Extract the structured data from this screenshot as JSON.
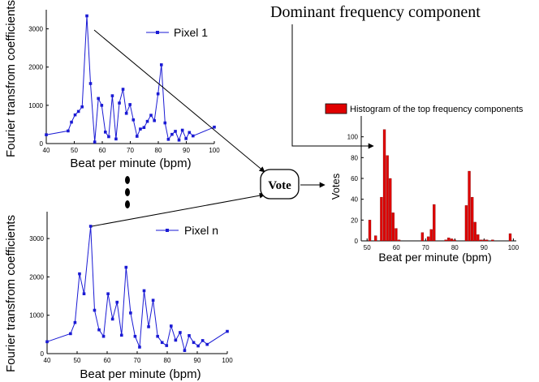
{
  "annotation_title": "Dominant frequency component",
  "vote_label": "Vote",
  "colors": {
    "series": "#1a1ad4",
    "bar": "#e00000",
    "axis": "#000000"
  },
  "chart_data": [
    {
      "id": "pixel1",
      "type": "line",
      "title": "",
      "xlabel": "Beat per minute (bpm)",
      "ylabel": "Fourier transfrom coefficients",
      "legend": "Pixel 1",
      "xlim": [
        40,
        100
      ],
      "ylim": [
        0,
        3500
      ],
      "xticks": [
        40,
        50,
        60,
        70,
        80,
        90,
        100
      ],
      "yticks": [
        0,
        1000,
        2000,
        3000
      ],
      "series": [
        {
          "name": "Pixel 1",
          "x": [
            40,
            47.8,
            49.0,
            50.3,
            51.5,
            52.8,
            54.5,
            55.8,
            57.3,
            58.6,
            59.8,
            61.1,
            62.3,
            63.6,
            64.9,
            66.1,
            67.4,
            68.6,
            69.9,
            71.1,
            72.4,
            73.6,
            74.9,
            76.1,
            77.4,
            78.6,
            79.9,
            81.1,
            82.4,
            83.6,
            84.9,
            86.1,
            87.4,
            88.6,
            89.9,
            91.1,
            92.4,
            100
          ],
          "y": [
            230,
            330,
            560,
            750,
            840,
            960,
            3340,
            1570,
            40,
            1180,
            1000,
            300,
            180,
            1250,
            120,
            1060,
            1420,
            790,
            1020,
            620,
            190,
            380,
            420,
            580,
            740,
            600,
            1300,
            2060,
            540,
            110,
            240,
            320,
            90,
            350,
            130,
            290,
            200,
            430
          ]
        }
      ]
    },
    {
      "id": "pixeln",
      "type": "line",
      "title": "",
      "xlabel": "Beat per minute (bpm)",
      "ylabel": "Fourier transfrom coefficients",
      "legend": "Pixel n",
      "xlim": [
        40,
        100
      ],
      "ylim": [
        0,
        3700
      ],
      "xticks": [
        40,
        50,
        60,
        70,
        80,
        90,
        100
      ],
      "yticks": [
        0,
        1000,
        2000,
        3000
      ],
      "series": [
        {
          "name": "Pixel n",
          "x": [
            40,
            47.8,
            49.3,
            50.8,
            52.3,
            54.5,
            55.8,
            57.3,
            58.8,
            60.3,
            61.8,
            63.3,
            64.8,
            66.3,
            67.8,
            69.3,
            70.8,
            72.3,
            73.8,
            75.3,
            76.8,
            78.3,
            79.8,
            81.3,
            82.8,
            84.3,
            85.8,
            87.3,
            88.8,
            90.3,
            91.8,
            93.3,
            100
          ],
          "y": [
            310,
            520,
            810,
            2080,
            1560,
            3320,
            1130,
            620,
            450,
            1560,
            900,
            1340,
            480,
            2250,
            1060,
            450,
            170,
            1640,
            700,
            1390,
            450,
            290,
            210,
            720,
            350,
            550,
            80,
            470,
            290,
            200,
            340,
            240,
            580
          ]
        }
      ]
    },
    {
      "id": "histogram",
      "type": "bar",
      "title": "",
      "xlabel": "Beat per minute (bpm)",
      "ylabel": "Votes",
      "legend": "Histogram of the top frequency components",
      "xlim": [
        48,
        101
      ],
      "ylim": [
        0,
        120
      ],
      "xticks": [
        50,
        60,
        70,
        80,
        90,
        100
      ],
      "yticks": [
        0,
        20,
        40,
        60,
        80,
        100
      ],
      "bin_width": 1,
      "x": [
        51,
        53,
        55,
        56,
        57,
        58,
        59,
        60,
        61,
        69,
        71,
        72,
        73,
        77,
        78,
        79,
        80,
        84,
        85,
        86,
        87,
        88,
        89,
        90,
        91,
        93,
        99
      ],
      "values": [
        20,
        5,
        42,
        107,
        82,
        60,
        27,
        12,
        1,
        8,
        4,
        11,
        35,
        1,
        3,
        2,
        1,
        34,
        67,
        42,
        18,
        6,
        1,
        1,
        1,
        1,
        7
      ]
    }
  ]
}
